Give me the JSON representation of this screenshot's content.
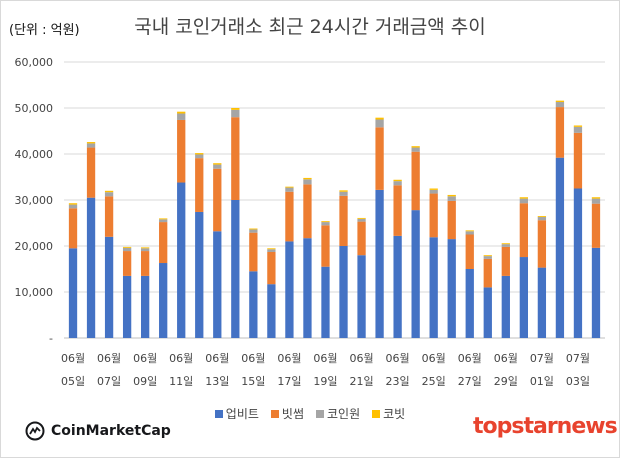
{
  "chart_data": {
    "type": "bar",
    "stacked": true,
    "title": "국내 코인거래소 최근 24시간 거래금액 추이",
    "unit_label": "(단위 : 억원)",
    "ylim": [
      0,
      60000
    ],
    "yticks": [
      "-",
      "10,000",
      "20,000",
      "30,000",
      "40,000",
      "50,000",
      "60,000"
    ],
    "grid": true,
    "legend_position": "bottom",
    "x_labels": [
      [
        "06월",
        "05일"
      ],
      [
        "06월",
        "07일"
      ],
      [
        "06월",
        "09일"
      ],
      [
        "06월",
        "11일"
      ],
      [
        "06월",
        "13일"
      ],
      [
        "06월",
        "15일"
      ],
      [
        "06월",
        "17일"
      ],
      [
        "06월",
        "19일"
      ],
      [
        "06월",
        "21일"
      ],
      [
        "06월",
        "23일"
      ],
      [
        "06월",
        "25일"
      ],
      [
        "06월",
        "27일"
      ],
      [
        "06월",
        "29일"
      ],
      [
        "07월",
        "01일"
      ],
      [
        "07월",
        "03일"
      ]
    ],
    "categories": [
      "06-05",
      "06-06",
      "06-07",
      "06-08",
      "06-09",
      "06-10",
      "06-11",
      "06-12",
      "06-13",
      "06-14",
      "06-15",
      "06-16",
      "06-17",
      "06-18",
      "06-19",
      "06-20",
      "06-21",
      "06-22",
      "06-23",
      "06-24",
      "06-25",
      "06-26",
      "06-27",
      "06-28",
      "06-29",
      "06-30",
      "07-01",
      "07-02",
      "07-03",
      "07-04"
    ],
    "series": [
      {
        "name": "업비트",
        "color": "#4472c4",
        "values": [
          19500,
          30500,
          22000,
          13500,
          13500,
          16300,
          33800,
          27400,
          23200,
          30000,
          14500,
          11700,
          21000,
          21700,
          15500,
          20000,
          18000,
          32200,
          22200,
          27800,
          21900,
          21500,
          15000,
          11000,
          13500,
          17600,
          15300,
          39200,
          32500,
          19600
        ]
      },
      {
        "name": "빗썸",
        "color": "#ed7d31",
        "values": [
          8700,
          10900,
          8800,
          5400,
          5400,
          8900,
          13600,
          11700,
          13600,
          18000,
          8400,
          7000,
          10800,
          11700,
          9000,
          10900,
          7300,
          13600,
          11000,
          12700,
          9500,
          8300,
          7500,
          6200,
          6300,
          11700,
          10300,
          11000,
          12100,
          9600
        ]
      },
      {
        "name": "코인원",
        "color": "#a5a5a5",
        "values": [
          800,
          900,
          900,
          700,
          600,
          600,
          1400,
          800,
          900,
          1600,
          700,
          600,
          900,
          1100,
          700,
          900,
          600,
          1700,
          900,
          900,
          800,
          1000,
          700,
          600,
          600,
          1000,
          700,
          1100,
          1300,
          1100
        ]
      },
      {
        "name": "코빗",
        "color": "#ffc000",
        "values": [
          300,
          300,
          300,
          200,
          200,
          200,
          400,
          300,
          300,
          400,
          200,
          200,
          200,
          300,
          200,
          300,
          200,
          400,
          300,
          300,
          300,
          300,
          200,
          200,
          200,
          300,
          200,
          300,
          300,
          300
        ]
      }
    ]
  },
  "footer": {
    "source_logo_text": "CoinMarketCap",
    "brand_text": "topstarnews"
  }
}
